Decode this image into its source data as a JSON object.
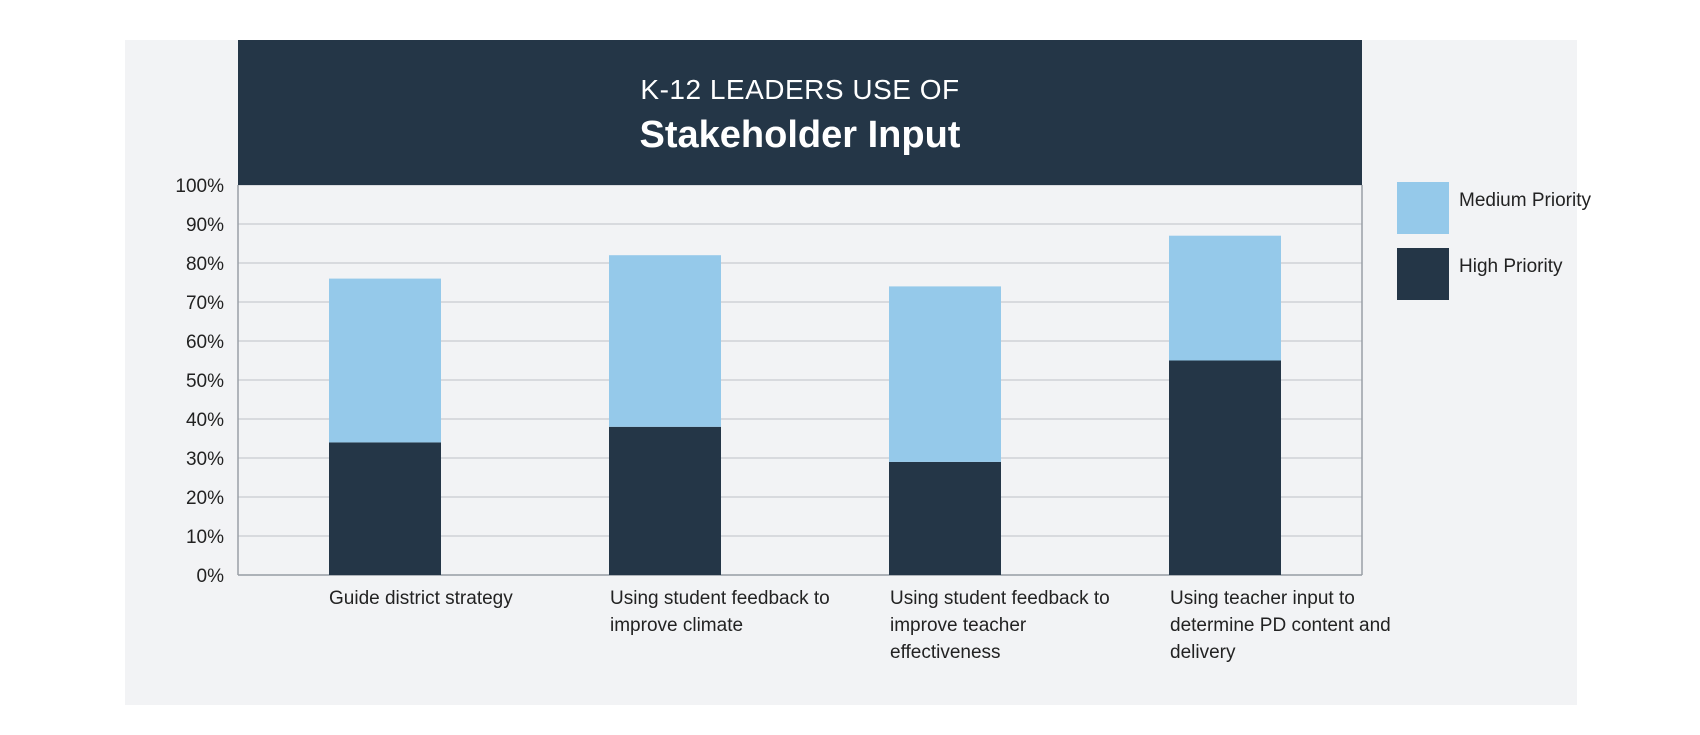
{
  "title": {
    "line1": "K-12 LEADERS USE OF",
    "line2": "Stakeholder Input"
  },
  "colors": {
    "banner": "#243647",
    "medium": "#95c9ea",
    "high": "#243647",
    "grid": "#c8ccd1",
    "panel": "#f2f3f5"
  },
  "legend": [
    {
      "label": "Medium Priority",
      "color_key": "medium"
    },
    {
      "label": "High Priority",
      "color_key": "high"
    }
  ],
  "chart_data": {
    "type": "bar",
    "stacked": true,
    "categories": [
      "Guide district strategy",
      "Using student feedback to improve climate",
      "Using student feedback to improve teacher effectiveness",
      "Using teacher input to determine PD content and delivery"
    ],
    "series": [
      {
        "name": "High Priority",
        "values": [
          34,
          38,
          29,
          55
        ]
      },
      {
        "name": "Medium Priority",
        "values": [
          42,
          44,
          45,
          32
        ]
      }
    ],
    "ylim": [
      0,
      100
    ],
    "yticks": [
      "0%",
      "10%",
      "20%",
      "30%",
      "40%",
      "50%",
      "60%",
      "70%",
      "80%",
      "90%",
      "100%"
    ],
    "grid": true,
    "legend_position": "right"
  }
}
